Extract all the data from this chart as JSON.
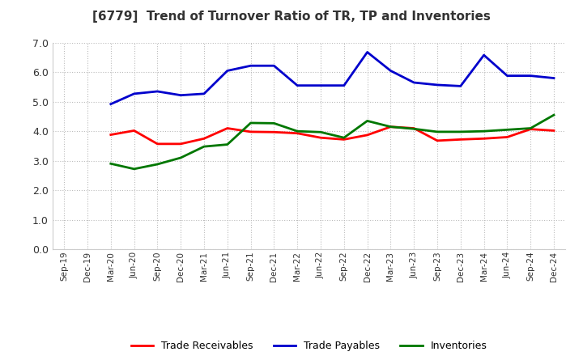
{
  "title": "[6779]  Trend of Turnover Ratio of TR, TP and Inventories",
  "x_labels": [
    "Sep-19",
    "Dec-19",
    "Mar-20",
    "Jun-20",
    "Sep-20",
    "Dec-20",
    "Mar-21",
    "Jun-21",
    "Sep-21",
    "Dec-21",
    "Mar-22",
    "Jun-22",
    "Sep-22",
    "Dec-22",
    "Mar-23",
    "Jun-23",
    "Sep-23",
    "Dec-23",
    "Mar-24",
    "Jun-24",
    "Sep-24",
    "Dec-24"
  ],
  "trade_receivables": [
    null,
    null,
    3.88,
    4.02,
    3.57,
    3.57,
    3.75,
    4.1,
    3.98,
    3.97,
    3.93,
    3.78,
    3.72,
    3.87,
    4.15,
    4.1,
    3.68,
    3.72,
    3.75,
    3.8,
    4.07,
    4.02
  ],
  "trade_payables": [
    null,
    null,
    4.92,
    5.27,
    5.35,
    5.22,
    5.27,
    6.05,
    6.22,
    6.22,
    5.55,
    5.55,
    5.55,
    6.68,
    6.05,
    5.65,
    5.57,
    5.53,
    6.58,
    5.88,
    5.88,
    5.8
  ],
  "inventories": [
    null,
    null,
    2.9,
    2.72,
    2.88,
    3.1,
    3.48,
    3.55,
    4.28,
    4.27,
    4.0,
    3.97,
    3.78,
    4.35,
    4.15,
    4.08,
    3.98,
    3.98,
    4.0,
    4.05,
    4.1,
    4.55
  ],
  "ylim": [
    0,
    7.0
  ],
  "yticks": [
    0.0,
    1.0,
    2.0,
    3.0,
    4.0,
    5.0,
    6.0,
    7.0
  ],
  "line_color_tr": "#ff0000",
  "line_color_tp": "#0000cc",
  "line_color_inv": "#007700",
  "legend_labels": [
    "Trade Receivables",
    "Trade Payables",
    "Inventories"
  ],
  "background_color": "#ffffff",
  "grid_color": "#bbbbbb",
  "title_color": "#333333"
}
